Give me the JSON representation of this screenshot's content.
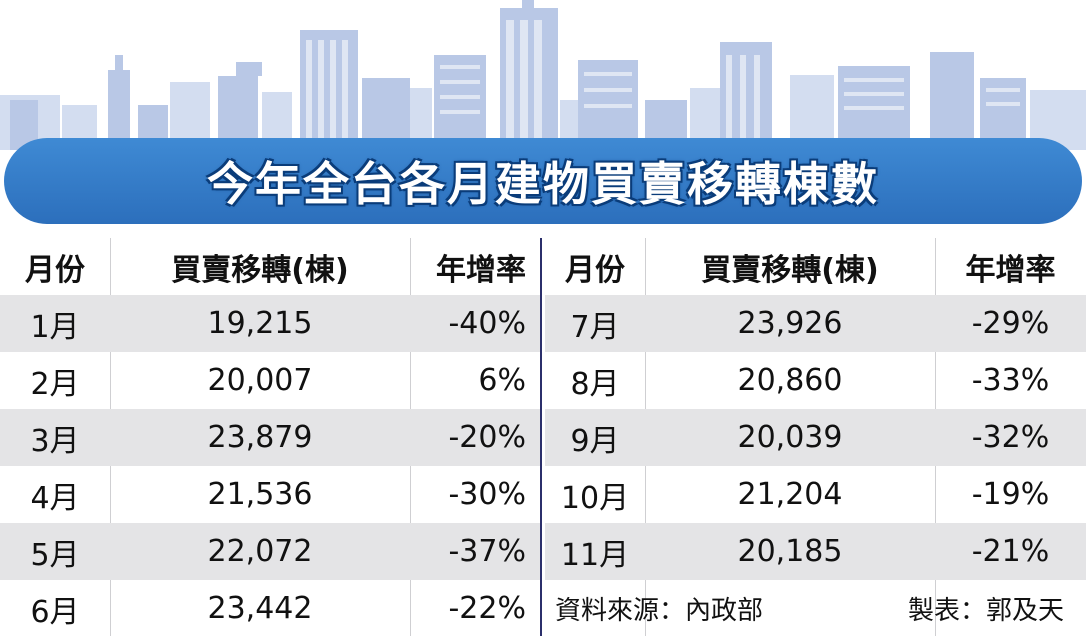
{
  "title": "今年全台各月建物買賣移轉棟數",
  "headers": {
    "month": "月份",
    "value": "買賣移轉(棟)",
    "rate": "年增率"
  },
  "left_rows": [
    {
      "month": "1月",
      "value": "19,215",
      "rate": "-40%"
    },
    {
      "month": "2月",
      "value": "20,007",
      "rate": "6%"
    },
    {
      "month": "3月",
      "value": "23,879",
      "rate": "-20%"
    },
    {
      "month": "4月",
      "value": "21,536",
      "rate": "-30%"
    },
    {
      "month": "5月",
      "value": "22,072",
      "rate": "-37%"
    },
    {
      "month": "6月",
      "value": "23,442",
      "rate": "-22%"
    }
  ],
  "right_rows": [
    {
      "month": "7月",
      "value": "23,926",
      "rate": "-29%"
    },
    {
      "month": "8月",
      "value": "20,860",
      "rate": "-33%"
    },
    {
      "month": "9月",
      "value": "20,039",
      "rate": "-32%"
    },
    {
      "month": "10月",
      "value": "21,204",
      "rate": "-19%"
    },
    {
      "month": "11月",
      "value": "20,185",
      "rate": "-21%"
    }
  ],
  "source": "資料來源：內政部",
  "credit": "製表：郭及天",
  "colors": {
    "banner": "#2f74c3",
    "stripe": "#e4e4e6",
    "skyline": "#b9c8e6",
    "divider": "#2b2f6b"
  }
}
